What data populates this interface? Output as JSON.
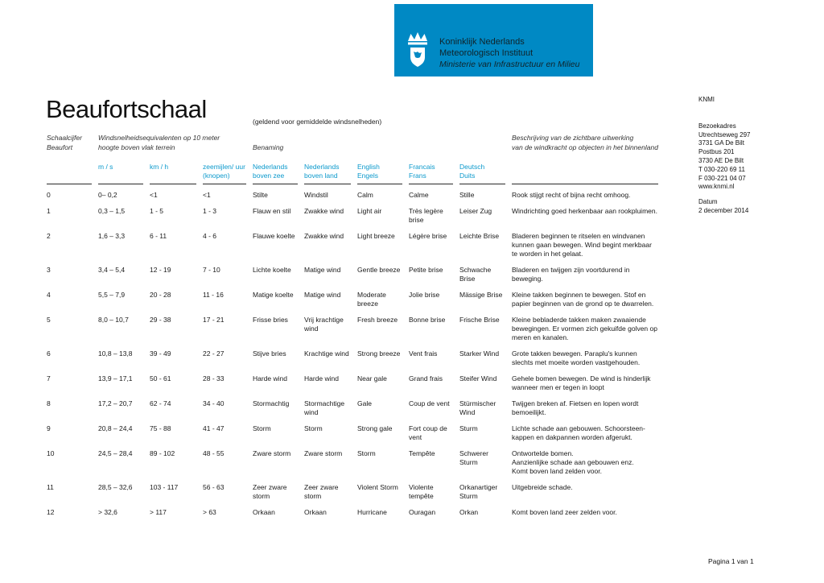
{
  "header": {
    "logo": {
      "brand_color": "#0089c4",
      "org_line1": "Koninklijk Nederlands",
      "org_line2": "Meteorologisch Instituut",
      "ministry": "Ministerie van Infrastructuur en Milieu"
    }
  },
  "title": "Beaufortschaal",
  "subtitle": "(geldend voor gemiddelde windsnelheden)",
  "sidebar": {
    "org": "KNMI",
    "address_label": "Bezoekadres",
    "address_lines": [
      "Utrechtseweg 297",
      "3731 GA De Bilt",
      "Postbus 201",
      "3730 AE De Bilt",
      "T 030-220 69 11",
      "F 030-221 04 07",
      "www.knmi.nl"
    ],
    "date_label": "Datum",
    "date_value": "2 december 2014"
  },
  "table": {
    "accent_color": "#0b99cc",
    "group_headers": {
      "scale_line1": "Schaalcijfer",
      "scale_line2": "Beaufort",
      "speed_line1": "Windsnelheidsequivalenten op 10 meter",
      "speed_line2": "hoogte boven vlak terrein",
      "naming": "Benaming",
      "desc_line1": "Beschrijving van de zichtbare uitwerking",
      "desc_line2": "van de windkracht op objecten in het binnenland"
    },
    "columns": [
      {
        "line1": "m / s",
        "line2": ""
      },
      {
        "line1": "km / h",
        "line2": ""
      },
      {
        "line1": "zeemijlen/ uur",
        "line2": "(knopen)"
      },
      {
        "line1": "Nederlands",
        "line2": "boven zee"
      },
      {
        "line1": "Nederlands",
        "line2": "boven land"
      },
      {
        "line1": "English",
        "line2": "Engels"
      },
      {
        "line1": "Francais",
        "line2": "Frans"
      },
      {
        "line1": "Deutsch",
        "line2": "Duits"
      }
    ],
    "rows": [
      [
        "0",
        "0– 0,2",
        "<1",
        "<1",
        "Stilte",
        "Windstil",
        "Calm",
        "Calme",
        "Stille",
        "Rook stijgt recht of bijna recht omhoog."
      ],
      [
        "1",
        "0,3 – 1,5",
        "1 - 5",
        "1 - 3",
        "Flauw en stil",
        "Zwakke wind",
        "Light air",
        "Très legère brise",
        "Leiser Zug",
        "Windrichting goed herkenbaar aan rookpluimen."
      ],
      [
        "2",
        "1,6 – 3,3",
        "6 - 11",
        "4 - 6",
        "Flauwe koelte",
        "Zwakke wind",
        "Light breeze",
        "Légère brise",
        "Leichte Brise",
        "Bladeren beginnen te ritselen en windvanen kunnen gaan bewegen. Wind begint merkbaar te worden in het gelaat."
      ],
      [
        "3",
        "3,4 – 5,4",
        "12 - 19",
        "7 - 10",
        "Lichte koelte",
        "Matige wind",
        "Gentle breeze",
        "Petite brise",
        "Schwache Brise",
        "Bladeren en twijgen zijn voortdurend in beweging."
      ],
      [
        "4",
        "5,5 – 7,9",
        "20 - 28",
        "11 - 16",
        "Matige koelte",
        "Matige wind",
        "Moderate breeze",
        "Jolie brise",
        "Mässige Brise",
        "Kleine takken beginnen te bewegen. Stof en papier beginnen van de grond op te dwarrelen."
      ],
      [
        "5",
        "8,0 – 10,7",
        "29 - 38",
        "17 - 21",
        "Frisse bries",
        "Vrij krachtige wind",
        "Fresh breeze",
        "Bonne brise",
        "Frische Brise",
        "Kleine bebladerde takken maken zwaaiende bewegingen. Er vormen zich gekuifde golven op meren en kanalen."
      ],
      [
        "6",
        "10,8 – 13,8",
        "39 - 49",
        "22 - 27",
        "Stijve bries",
        "Krachtige wind",
        "Strong breeze",
        "Vent frais",
        "Starker Wind",
        "Grote takken bewegen. Paraplu's kunnen slechts met moeite worden vastgehouden."
      ],
      [
        "7",
        "13,9 – 17,1",
        "50 - 61",
        "28 - 33",
        "Harde wind",
        "Harde wind",
        "Near gale",
        "Grand frais",
        "Steifer Wind",
        "Gehele bomen bewegen. De wind is hinderlijk wanneer men er tegen in loopt"
      ],
      [
        "8",
        "17,2 – 20,7",
        "62 - 74",
        "34 - 40",
        "Stormachtig",
        "Stormachtige wind",
        "Gale",
        "Coup de vent",
        "Stürmischer Wind",
        "Twijgen breken af.  Fietsen en lopen wordt bemoeilijkt."
      ],
      [
        "9",
        "20,8 – 24,4",
        "75 - 88",
        "41 - 47",
        "Storm",
        "Storm",
        "Strong gale",
        "Fort coup de vent",
        "Sturm",
        "Lichte schade aan gebouwen. Schoorsteen-kappen en dakpannen worden afgerukt."
      ],
      [
        "10",
        "24,5 – 28,4",
        "89 - 102",
        "48 - 55",
        "Zware storm",
        "Zware storm",
        "Storm",
        "Tempête",
        "Schwerer Sturm",
        "Ontwortelde bomen.\nAanzienlijke schade aan gebouwen enz.\nKomt boven land zelden voor."
      ],
      [
        "11",
        "28,5 – 32,6",
        "103 - 117",
        "56 - 63",
        "Zeer zware storm",
        "Zeer zware storm",
        "Violent Storm",
        "Violente tempête",
        "Orkanartiger Sturm",
        "Uitgebreide schade."
      ],
      [
        "12",
        "> 32,6",
        "> 117",
        "> 63",
        "Orkaan",
        "Orkaan",
        "Hurricane",
        "Ouragan",
        "Orkan",
        "Komt boven land zeer zelden voor."
      ]
    ]
  },
  "footer": {
    "page": "Pagina 1 van 1"
  }
}
